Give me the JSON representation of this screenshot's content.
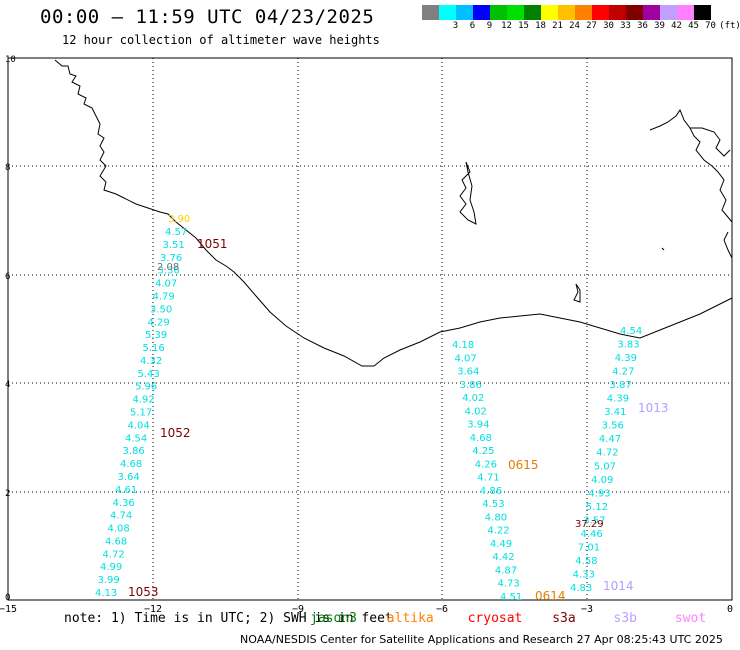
{
  "header": {
    "title": "00:00 – 11:59 UTC 04/23/2025",
    "subtitle": "12 hour collection of altimeter wave heights"
  },
  "colorbar": {
    "colors": [
      "#808080",
      "#00ffff",
      "#00bfff",
      "#0000ff",
      "#00c000",
      "#00e000",
      "#008000",
      "#ffff00",
      "#ffc000",
      "#ff8000",
      "#ff0000",
      "#c00000",
      "#800000",
      "#a000a0",
      "#c0a0ff",
      "#ff80ff",
      "#000000"
    ],
    "labels": [
      "",
      "3",
      "6",
      "9",
      "12",
      "15",
      "18",
      "21",
      "24",
      "27",
      "30",
      "33",
      "36",
      "39",
      "42",
      "45",
      "70",
      "(ft)"
    ]
  },
  "axes": {
    "y_ticks": [
      "10",
      "8",
      "6",
      "4",
      "2",
      "0"
    ],
    "x_ticks": [
      "−15",
      "−12",
      "−9",
      "−6",
      "−3",
      "0"
    ]
  },
  "tracks": [
    {
      "name": "track-a",
      "color": "#00e0e0",
      "values": [
        "4.57",
        "3.51",
        "3.76",
        "3.36",
        "4.07",
        "4.79",
        "3.50",
        "4.29",
        "5.39",
        "5.16",
        "4.32",
        "5.43",
        "5.96",
        "4.92",
        "5.17",
        "4.04",
        "4.54",
        "3.86",
        "4.68",
        "3.64",
        "4.61",
        "4.36",
        "4.74",
        "4.08",
        "4.68",
        "4.72",
        "4.99",
        "3.99",
        "4.13"
      ]
    },
    {
      "name": "track-b",
      "color": "#00e0e0",
      "values": [
        "4.18",
        "4.07",
        "3.64",
        "3.86",
        "4.02",
        "4.02",
        "3.94",
        "4.68",
        "4.25",
        "4.26",
        "4.71",
        "4.86",
        "4.53",
        "4.80",
        "4.22",
        "4.49",
        "4.42",
        "4.87",
        "4.73",
        "4.51"
      ]
    },
    {
      "name": "track-c",
      "color": "#00e0e0",
      "values": [
        "4.54",
        "3.83",
        "4.39",
        "4.27",
        "3.87",
        "4.39",
        "3.41",
        "3.56",
        "4.47",
        "4.72",
        "5.07",
        "4.09",
        "4.93",
        "5.12",
        "3.57",
        "4.46",
        "7.01",
        "4.58",
        "4.33",
        "4.83"
      ]
    }
  ],
  "special_values": [
    {
      "text": "3.90",
      "color": "#ffd000"
    },
    {
      "text": "2.08",
      "color": "#707070"
    },
    {
      "text": "37.29",
      "color": "#800000"
    }
  ],
  "pass_labels": [
    {
      "text": "1051",
      "color": "#800000"
    },
    {
      "text": "1052",
      "color": "#800000"
    },
    {
      "text": "1053",
      "color": "#800000"
    },
    {
      "text": "0615",
      "color": "#e08000"
    },
    {
      "text": "0614",
      "color": "#e08000"
    },
    {
      "text": "1013",
      "color": "#b0a0ff"
    },
    {
      "text": "1014",
      "color": "#b0a0ff"
    }
  ],
  "footer": {
    "note_prefix": "note:  1) Time is in UTC; 2) SWH is in feet",
    "satellites": [
      {
        "name": "jason3",
        "color": "#008000"
      },
      {
        "name": "altika",
        "color": "#ff8000"
      },
      {
        "name": "cryosat",
        "color": "#ff0000"
      },
      {
        "name": "s3a",
        "color": "#800000"
      },
      {
        "name": "s3b",
        "color": "#c0a0ff"
      },
      {
        "name": "swot",
        "color": "#ff80ff"
      }
    ],
    "credit": "NOAA/NESDIS Center for Satellite Applications and Research    27 Apr 08:25:43 UTC 2025"
  }
}
